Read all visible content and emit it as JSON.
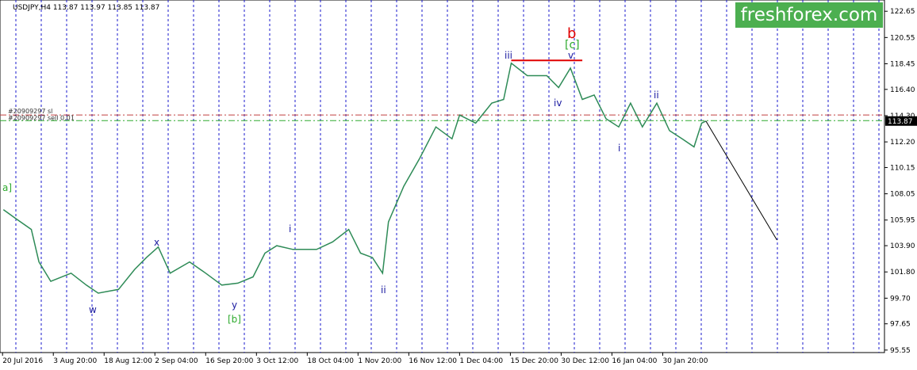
{
  "chart_data": {
    "type": "line",
    "title": "USDJPY,H4  113.87 113.97 113.85 113.87",
    "brand": "freshforex.com",
    "x": [
      1,
      15,
      34,
      43,
      57,
      81,
      99,
      113,
      137,
      156,
      170,
      184,
      198,
      221,
      240,
      259,
      278,
      296,
      310,
      324,
      343,
      371,
      390,
      409,
      423,
      437,
      449,
      456,
      474,
      493,
      512,
      531,
      540,
      559,
      578,
      592,
      601,
      620,
      643,
      657,
      671,
      685,
      699,
      713,
      728,
      742,
      756,
      773,
      788,
      803,
      817,
      826,
      831
    ],
    "series": [
      {
        "name": "USDJPY",
        "color": "#2e8b57",
        "values": [
          106.78,
          106.1,
          105.2,
          102.6,
          101.05,
          101.7,
          100.75,
          100.1,
          100.4,
          102.0,
          102.95,
          103.8,
          101.7,
          102.6,
          101.7,
          100.75,
          100.9,
          101.4,
          103.3,
          103.9,
          103.6,
          103.6,
          104.2,
          105.2,
          103.3,
          102.95,
          101.7,
          105.8,
          108.65,
          110.9,
          113.4,
          112.45,
          114.35,
          113.7,
          115.3,
          115.6,
          118.5,
          117.5,
          117.5,
          116.55,
          118.1,
          115.6,
          115.95,
          114.05,
          113.4,
          115.3,
          113.4,
          115.3,
          113.1,
          112.45,
          111.8,
          113.7,
          113.87
        ]
      }
    ],
    "xlim": [
      -3,
      1042
    ],
    "ylim": [
      95.35,
      123.55
    ],
    "xticks": [
      {
        "value": 0,
        "label": "20 Jul 2016"
      },
      {
        "value": 60,
        "label": "3 Aug 20:00"
      },
      {
        "value": 120,
        "label": "18 Aug 12:00"
      },
      {
        "value": 180,
        "label": "2 Sep 04:00"
      },
      {
        "value": 240,
        "label": "16 Sep 20:00"
      },
      {
        "value": 300,
        "label": "3 Oct 12:00"
      },
      {
        "value": 360,
        "label": "18 Oct 04:00"
      },
      {
        "value": 420,
        "label": "1 Nov 20:00"
      },
      {
        "value": 480,
        "label": "16 Nov 12:00"
      },
      {
        "value": 540,
        "label": "1 Dec 04:00"
      },
      {
        "value": 600,
        "label": "15 Dec 20:00"
      },
      {
        "value": 660,
        "label": "30 Dec 12:00"
      },
      {
        "value": 720,
        "label": "16 Jan 04:00"
      },
      {
        "value": 780,
        "label": "30 Jan 20:00"
      }
    ],
    "yticks": [
      122.65,
      120.55,
      118.45,
      {
        "value": 116.4,
        "label": "116.40"
      },
      {
        "value": 114.3,
        "label": "114.30"
      },
      {
        "value": 112.2,
        "label": "112.20"
      },
      110.15,
      108.05,
      105.95,
      {
        "value": 103.9,
        "label": "103.90"
      },
      {
        "value": 101.8,
        "label": "101.80"
      },
      {
        "value": 99.7,
        "label": "99.70"
      },
      97.65,
      95.55
    ],
    "levels": [
      {
        "name": "#20909297 sl",
        "value": 114.35,
        "color": "#c04040"
      },
      {
        "name": "#20909297 sell 0.01",
        "value": 113.9,
        "color": "#2eaa2e"
      }
    ],
    "last_price": 113.87,
    "trend_lines": [
      {
        "x": [
          601,
          685
        ],
        "y": [
          118.72,
          118.72
        ],
        "color": "#e00000"
      },
      {
        "x": [
          831,
          915
        ],
        "y": [
          113.87,
          104.35
        ],
        "color": "#000000"
      }
    ],
    "annotations": [
      "a]",
      "w",
      "x",
      "y",
      "[b]",
      "i",
      "ii",
      "iii",
      "iv",
      "v",
      "[c]",
      "b",
      "i",
      "ii"
    ]
  }
}
